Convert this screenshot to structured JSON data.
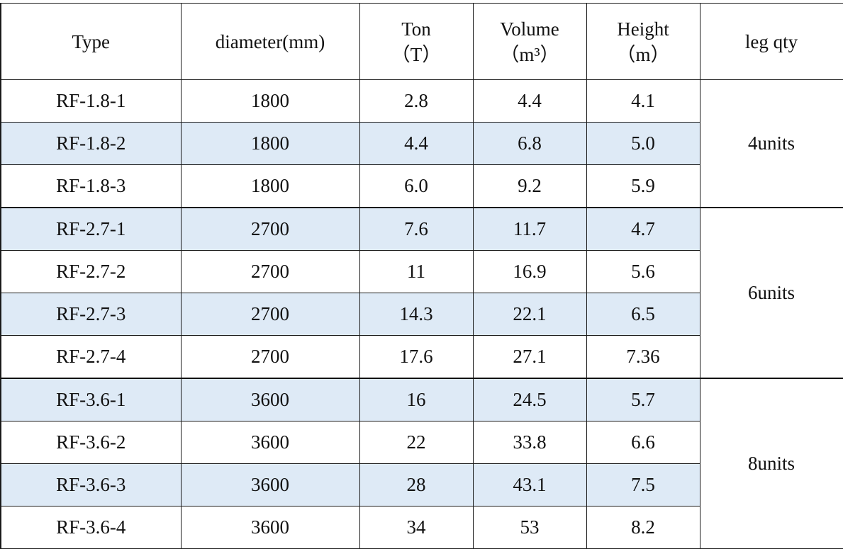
{
  "headers": [
    {
      "line1": "Type",
      "line2": ""
    },
    {
      "line1": "diameter(mm)",
      "line2": ""
    },
    {
      "line1": "Ton",
      "line2": "（T）"
    },
    {
      "line1": "Volume",
      "line2": "（m³）"
    },
    {
      "line1": "Height",
      "line2": "（m）"
    },
    {
      "line1": "leg qty",
      "line2": ""
    }
  ],
  "groups": [
    {
      "leg_qty": "4units",
      "rows": [
        {
          "type": "RF-1.8-1",
          "diameter": "1800",
          "ton": "2.8",
          "volume": "4.4",
          "height": "4.1"
        },
        {
          "type": "RF-1.8-2",
          "diameter": "1800",
          "ton": "4.4",
          "volume": "6.8",
          "height": "5.0"
        },
        {
          "type": "RF-1.8-3",
          "diameter": "1800",
          "ton": "6.0",
          "volume": "9.2",
          "height": "5.9"
        }
      ]
    },
    {
      "leg_qty": "6units",
      "rows": [
        {
          "type": "RF-2.7-1",
          "diameter": "2700",
          "ton": "7.6",
          "volume": "11.7",
          "height": "4.7"
        },
        {
          "type": "RF-2.7-2",
          "diameter": "2700",
          "ton": "11",
          "volume": "16.9",
          "height": "5.6"
        },
        {
          "type": "RF-2.7-3",
          "diameter": "2700",
          "ton": "14.3",
          "volume": "22.1",
          "height": "6.5"
        },
        {
          "type": "RF-2.7-4",
          "diameter": "2700",
          "ton": "17.6",
          "volume": "27.1",
          "height": "7.36"
        }
      ]
    },
    {
      "leg_qty": "8units",
      "rows": [
        {
          "type": "RF-3.6-1",
          "diameter": "3600",
          "ton": "16",
          "volume": "24.5",
          "height": "5.7"
        },
        {
          "type": "RF-3.6-2",
          "diameter": "3600",
          "ton": "22",
          "volume": "33.8",
          "height": "6.6"
        },
        {
          "type": "RF-3.6-3",
          "diameter": "3600",
          "ton": "28",
          "volume": "43.1",
          "height": "7.5"
        },
        {
          "type": "RF-3.6-4",
          "diameter": "3600",
          "ton": "34",
          "volume": "53",
          "height": "8.2"
        }
      ]
    }
  ],
  "colors": {
    "shaded_row": "#deeaf6",
    "border": "#1a1a1a"
  }
}
